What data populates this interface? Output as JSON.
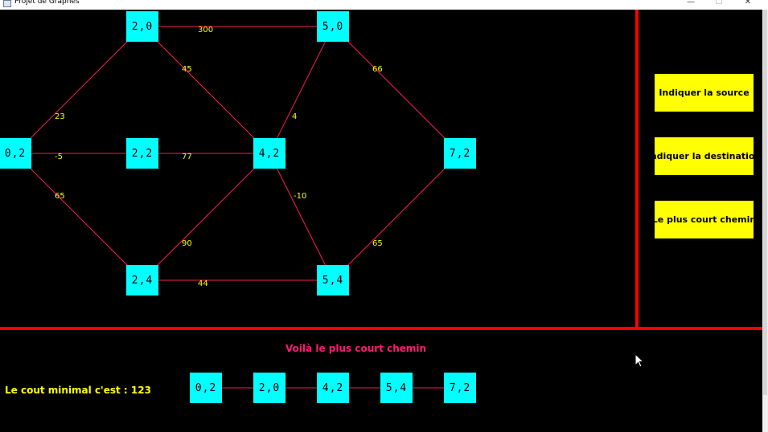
{
  "window": {
    "title": "Projet de Graphes",
    "buttons": {
      "minimize": "—",
      "maximize": "☐",
      "close": "✕"
    }
  },
  "colors": {
    "background": "#000000",
    "node": "#00ffff",
    "edge": "#ff1a4f",
    "label": "#ffff00",
    "divider": "#ff0000",
    "button": "#ffff00",
    "result_title": "#ff1a75"
  },
  "graph": {
    "nodes": [
      "0,2",
      "2,0",
      "2,2",
      "2,4",
      "4,2",
      "5,0",
      "5,4",
      "7,2"
    ],
    "edges": [
      {
        "from": "0,2",
        "to": "2,0",
        "weight": "23"
      },
      {
        "from": "0,2",
        "to": "2,2",
        "weight": "-5"
      },
      {
        "from": "0,2",
        "to": "2,4",
        "weight": "65"
      },
      {
        "from": "2,0",
        "to": "5,0",
        "weight": "300"
      },
      {
        "from": "2,0",
        "to": "4,2",
        "weight": "45"
      },
      {
        "from": "2,2",
        "to": "4,2",
        "weight": "77"
      },
      {
        "from": "2,4",
        "to": "4,2",
        "weight": "90"
      },
      {
        "from": "2,4",
        "to": "5,4",
        "weight": "44"
      },
      {
        "from": "4,2",
        "to": "5,0",
        "weight": "4"
      },
      {
        "from": "4,2",
        "to": "5,4",
        "weight": "-10"
      },
      {
        "from": "5,0",
        "to": "7,2",
        "weight": "66"
      },
      {
        "from": "5,4",
        "to": "7,2",
        "weight": "65"
      }
    ]
  },
  "panel": {
    "source_button": "Indiquer la source",
    "destination_button": "Indiquer la destination",
    "shortest_path_button": "Le plus court chemin"
  },
  "result": {
    "title": "Voilà le plus court chemin",
    "cost_text": "Le cout minimal c'est : 123",
    "path": [
      "0,2",
      "2,0",
      "4,2",
      "5,4",
      "7,2"
    ]
  }
}
